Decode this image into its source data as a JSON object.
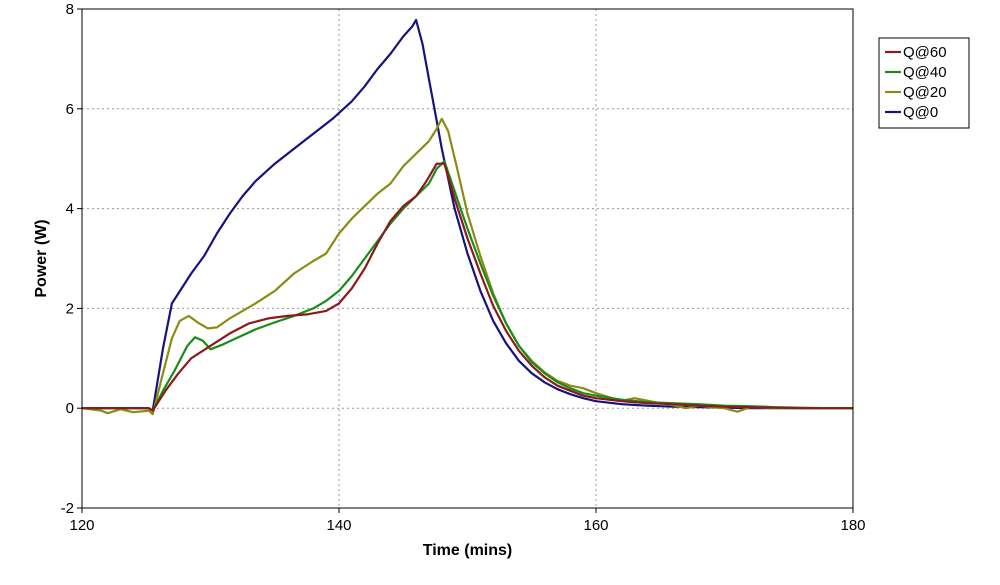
{
  "chart_data": {
    "type": "line",
    "title": "",
    "xlabel": "Time (mins)",
    "ylabel": "Power (W)",
    "xlim": [
      120,
      180
    ],
    "ylim": [
      -2,
      8
    ],
    "xticks": [
      120,
      140,
      160,
      180
    ],
    "yticks": [
      -2,
      0,
      2,
      4,
      6,
      8
    ],
    "grid": true,
    "legend_position": "top-right",
    "series": [
      {
        "name": "Q@60",
        "color": "#8b1a1a",
        "points": [
          [
            120,
            0
          ],
          [
            125.2,
            0
          ],
          [
            125.5,
            -0.05
          ],
          [
            126.5,
            0.35
          ],
          [
            127.5,
            0.7
          ],
          [
            128.5,
            1.0
          ],
          [
            130,
            1.25
          ],
          [
            131.5,
            1.5
          ],
          [
            133,
            1.7
          ],
          [
            134.5,
            1.8
          ],
          [
            136,
            1.85
          ],
          [
            137.5,
            1.88
          ],
          [
            139,
            1.95
          ],
          [
            140,
            2.1
          ],
          [
            141,
            2.4
          ],
          [
            142,
            2.8
          ],
          [
            143,
            3.3
          ],
          [
            144,
            3.75
          ],
          [
            145,
            4.05
          ],
          [
            146,
            4.25
          ],
          [
            146.8,
            4.55
          ],
          [
            147.6,
            4.9
          ],
          [
            148.2,
            4.9
          ],
          [
            149,
            4.2
          ],
          [
            150,
            3.4
          ],
          [
            151,
            2.7
          ],
          [
            152,
            2.05
          ],
          [
            153,
            1.55
          ],
          [
            154,
            1.15
          ],
          [
            155,
            0.85
          ],
          [
            156,
            0.62
          ],
          [
            157,
            0.45
          ],
          [
            158,
            0.35
          ],
          [
            159,
            0.25
          ],
          [
            160,
            0.2
          ],
          [
            162,
            0.14
          ],
          [
            164,
            0.1
          ],
          [
            166,
            0.08
          ],
          [
            168,
            0.05
          ],
          [
            170,
            0.03
          ],
          [
            172,
            0.02
          ],
          [
            174,
            0.01
          ],
          [
            176,
            0
          ],
          [
            180,
            0
          ]
        ]
      },
      {
        "name": "Q@40",
        "color": "#1a8c1a",
        "points": [
          [
            120,
            0
          ],
          [
            125.2,
            0
          ],
          [
            125.5,
            -0.05
          ],
          [
            126.3,
            0.35
          ],
          [
            127.2,
            0.75
          ],
          [
            128.2,
            1.25
          ],
          [
            128.8,
            1.42
          ],
          [
            129.4,
            1.35
          ],
          [
            130,
            1.18
          ],
          [
            131,
            1.28
          ],
          [
            132,
            1.4
          ],
          [
            133.5,
            1.58
          ],
          [
            135,
            1.72
          ],
          [
            136.5,
            1.85
          ],
          [
            138,
            2.0
          ],
          [
            139,
            2.15
          ],
          [
            140,
            2.35
          ],
          [
            141,
            2.65
          ],
          [
            142,
            3.0
          ],
          [
            143,
            3.35
          ],
          [
            144,
            3.7
          ],
          [
            145,
            4.0
          ],
          [
            146,
            4.25
          ],
          [
            147,
            4.5
          ],
          [
            147.6,
            4.8
          ],
          [
            148.2,
            4.95
          ],
          [
            149,
            4.35
          ],
          [
            150,
            3.6
          ],
          [
            151,
            2.9
          ],
          [
            152,
            2.25
          ],
          [
            153,
            1.7
          ],
          [
            154,
            1.25
          ],
          [
            155,
            0.92
          ],
          [
            156,
            0.7
          ],
          [
            157,
            0.52
          ],
          [
            158,
            0.4
          ],
          [
            159,
            0.3
          ],
          [
            160,
            0.25
          ],
          [
            162,
            0.17
          ],
          [
            164,
            0.12
          ],
          [
            166,
            0.1
          ],
          [
            168,
            0.08
          ],
          [
            170,
            0.05
          ],
          [
            172,
            0.04
          ],
          [
            174,
            0.02
          ],
          [
            176,
            0.01
          ],
          [
            178,
            0
          ],
          [
            180,
            0
          ]
        ]
      },
      {
        "name": "Q@20",
        "color": "#8c8c14",
        "points": [
          [
            120,
            0
          ],
          [
            121.5,
            -0.05
          ],
          [
            122,
            -0.1
          ],
          [
            123,
            -0.02
          ],
          [
            124,
            -0.08
          ],
          [
            125.2,
            -0.05
          ],
          [
            125.5,
            -0.12
          ],
          [
            126.2,
            0.6
          ],
          [
            127,
            1.4
          ],
          [
            127.6,
            1.75
          ],
          [
            128.3,
            1.85
          ],
          [
            129,
            1.72
          ],
          [
            129.8,
            1.6
          ],
          [
            130.5,
            1.62
          ],
          [
            131.5,
            1.8
          ],
          [
            132.5,
            1.95
          ],
          [
            133.5,
            2.1
          ],
          [
            135,
            2.35
          ],
          [
            136.5,
            2.7
          ],
          [
            138,
            2.95
          ],
          [
            139,
            3.1
          ],
          [
            140,
            3.5
          ],
          [
            141,
            3.8
          ],
          [
            142,
            4.05
          ],
          [
            143,
            4.3
          ],
          [
            144,
            4.5
          ],
          [
            145,
            4.85
          ],
          [
            146,
            5.1
          ],
          [
            147,
            5.35
          ],
          [
            147.6,
            5.6
          ],
          [
            148,
            5.8
          ],
          [
            148.5,
            5.55
          ],
          [
            149.2,
            4.8
          ],
          [
            150,
            3.9
          ],
          [
            151,
            3.05
          ],
          [
            152,
            2.3
          ],
          [
            153,
            1.7
          ],
          [
            154,
            1.25
          ],
          [
            155,
            0.95
          ],
          [
            156,
            0.72
          ],
          [
            157,
            0.55
          ],
          [
            158,
            0.45
          ],
          [
            159,
            0.4
          ],
          [
            160,
            0.3
          ],
          [
            161,
            0.22
          ],
          [
            162,
            0.15
          ],
          [
            163,
            0.2
          ],
          [
            164,
            0.15
          ],
          [
            165,
            0.1
          ],
          [
            166,
            0.06
          ],
          [
            167,
            0.0
          ],
          [
            168,
            0.05
          ],
          [
            169,
            0.02
          ],
          [
            170,
            0.0
          ],
          [
            171,
            -0.07
          ],
          [
            172,
            0.02
          ],
          [
            173,
            0.01
          ],
          [
            174,
            0
          ],
          [
            180,
            0
          ]
        ]
      },
      {
        "name": "Q@0",
        "color": "#14147c",
        "points": [
          [
            120,
            0
          ],
          [
            125.2,
            0
          ],
          [
            125.5,
            -0.05
          ],
          [
            126.3,
            1.2
          ],
          [
            127,
            2.1
          ],
          [
            127.5,
            2.3
          ],
          [
            128.5,
            2.7
          ],
          [
            129.5,
            3.05
          ],
          [
            130.5,
            3.5
          ],
          [
            131.5,
            3.9
          ],
          [
            132.5,
            4.25
          ],
          [
            133.5,
            4.55
          ],
          [
            135,
            4.9
          ],
          [
            136.5,
            5.2
          ],
          [
            138,
            5.5
          ],
          [
            139.5,
            5.8
          ],
          [
            141,
            6.15
          ],
          [
            142,
            6.45
          ],
          [
            143,
            6.8
          ],
          [
            144,
            7.1
          ],
          [
            145,
            7.45
          ],
          [
            145.7,
            7.65
          ],
          [
            146,
            7.78
          ],
          [
            146.5,
            7.3
          ],
          [
            147,
            6.6
          ],
          [
            147.5,
            5.9
          ],
          [
            148,
            5.2
          ],
          [
            148.5,
            4.6
          ],
          [
            149,
            4.0
          ],
          [
            150,
            3.1
          ],
          [
            151,
            2.35
          ],
          [
            152,
            1.75
          ],
          [
            153,
            1.3
          ],
          [
            154,
            0.95
          ],
          [
            155,
            0.7
          ],
          [
            156,
            0.52
          ],
          [
            157,
            0.38
          ],
          [
            158,
            0.28
          ],
          [
            159,
            0.2
          ],
          [
            160,
            0.14
          ],
          [
            162,
            0.08
          ],
          [
            164,
            0.05
          ],
          [
            166,
            0.03
          ],
          [
            168,
            0.02
          ],
          [
            170,
            0.01
          ],
          [
            172,
            0
          ],
          [
            180,
            0
          ]
        ]
      }
    ]
  }
}
